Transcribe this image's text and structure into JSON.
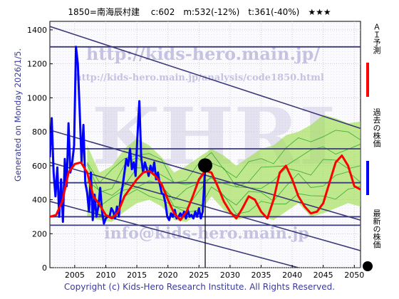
{
  "header": {
    "title": "1850=南海辰村建　 c:602　m:532(-12%)　t:361(-40%)　★★★"
  },
  "side_note": "Generated on Monday 2026/1/5.",
  "footer": {
    "copyright": "Copyright (c) Kids-Hero Research Institute. All Rights Reserved."
  },
  "watermarks": {
    "url1": "http://kids-hero.main.jp/",
    "url2": "http://kids-hero.main.jp/analysis/code1850.html",
    "logo": "KHRI",
    "email": "info@kids-hero.main.jp"
  },
  "legend": {
    "ai": {
      "label": "ＡＩ予測",
      "color": "#ff0000"
    },
    "past": {
      "label": "過去の株価",
      "color": "#0000ff"
    },
    "latest": {
      "label": "最新の株価",
      "color": "#000000"
    }
  },
  "chart_data": {
    "type": "line",
    "xlim": [
      2001,
      2051
    ],
    "ylim": [
      0,
      1450
    ],
    "x_ticks": [
      2005,
      2010,
      2015,
      2020,
      2025,
      2030,
      2035,
      2040,
      2045,
      2050
    ],
    "y_ticks": [
      0,
      200,
      400,
      600,
      800,
      1000,
      1200,
      1400
    ],
    "grid": true,
    "hlines": [
      1300,
      700,
      500,
      300,
      250
    ],
    "hline_color": "#3a3a7a",
    "trend_lines": [
      {
        "points": [
          [
            2001,
            1420
          ],
          [
            2051,
            820
          ]
        ]
      },
      {
        "points": [
          [
            2001,
            810
          ],
          [
            2051,
            280
          ]
        ]
      },
      {
        "points": [
          [
            2001,
            620
          ],
          [
            2051,
            100
          ]
        ]
      },
      {
        "points": [
          [
            2001,
            390
          ],
          [
            2041,
            0
          ]
        ]
      }
    ],
    "latest_price": {
      "x": 2026.0,
      "y": 602,
      "color": "#000000"
    },
    "series": [
      {
        "name": "過去の株価",
        "color": "#0000ff",
        "x": [
          2001.0,
          2001.3,
          2001.6,
          2001.9,
          2002.2,
          2002.5,
          2002.8,
          2003.1,
          2003.4,
          2003.7,
          2004.0,
          2004.3,
          2004.6,
          2004.9,
          2005.2,
          2005.5,
          2005.8,
          2006.1,
          2006.4,
          2006.7,
          2007.0,
          2007.3,
          2007.6,
          2007.9,
          2008.2,
          2008.5,
          2008.8,
          2009.1,
          2009.4,
          2009.7,
          2010.0,
          2010.3,
          2010.6,
          2010.9,
          2011.2,
          2011.5,
          2011.8,
          2012.1,
          2012.4,
          2012.7,
          2013.0,
          2013.3,
          2013.6,
          2013.9,
          2014.2,
          2014.5,
          2014.8,
          2015.1,
          2015.4,
          2015.7,
          2016.0,
          2016.3,
          2016.6,
          2016.9,
          2017.2,
          2017.5,
          2017.8,
          2018.1,
          2018.4,
          2018.7,
          2019.0,
          2019.3,
          2019.6,
          2019.9,
          2020.2,
          2020.5,
          2020.8,
          2021.1,
          2021.4,
          2021.7,
          2022.0,
          2022.3,
          2022.6,
          2022.9,
          2023.2,
          2023.5,
          2023.8,
          2024.1,
          2024.4,
          2024.7,
          2025.0,
          2025.3,
          2025.6,
          2026.0
        ],
        "y": [
          650,
          880,
          560,
          420,
          590,
          300,
          520,
          270,
          640,
          480,
          850,
          560,
          620,
          720,
          1300,
          1200,
          920,
          620,
          840,
          500,
          440,
          330,
          560,
          280,
          430,
          300,
          360,
          470,
          330,
          260,
          290,
          300,
          300,
          350,
          330,
          290,
          360,
          300,
          420,
          480,
          560,
          640,
          600,
          700,
          580,
          620,
          540,
          780,
          980,
          650,
          560,
          620,
          580,
          540,
          600,
          560,
          620,
          520,
          560,
          490,
          440,
          430,
          380,
          300,
          280,
          320,
          300,
          340,
          290,
          300,
          320,
          300,
          330,
          290,
          340,
          300,
          310,
          290,
          330,
          300,
          350,
          290,
          330,
          602
        ]
      },
      {
        "name": "ＡＩ予測",
        "color": "#ff0000",
        "x": [
          2001,
          2002,
          2003,
          2004,
          2005,
          2006,
          2007,
          2008,
          2009,
          2010,
          2011,
          2012,
          2013,
          2014,
          2015,
          2016,
          2017,
          2018,
          2019,
          2020,
          2021,
          2022,
          2023,
          2024,
          2025,
          2026,
          2027,
          2028,
          2029,
          2030,
          2031,
          2032,
          2033,
          2034,
          2035,
          2036,
          2037,
          2038,
          2039,
          2040,
          2041,
          2042,
          2043,
          2044,
          2045,
          2046,
          2047,
          2048,
          2049,
          2050,
          2051
        ],
        "y": [
          300,
          310,
          390,
          560,
          610,
          620,
          560,
          420,
          370,
          310,
          290,
          330,
          420,
          470,
          520,
          560,
          570,
          540,
          490,
          400,
          320,
          280,
          330,
          420,
          520,
          570,
          560,
          480,
          390,
          330,
          290,
          350,
          420,
          400,
          330,
          290,
          400,
          560,
          600,
          520,
          420,
          360,
          320,
          330,
          380,
          500,
          620,
          660,
          600,
          480,
          460
        ]
      }
    ],
    "forecast_band": {
      "x": [
        2007,
        2009,
        2011,
        2013,
        2015,
        2017,
        2019,
        2021,
        2023,
        2025,
        2027,
        2029,
        2031,
        2033,
        2035,
        2037,
        2039,
        2041,
        2043,
        2045,
        2047,
        2049,
        2051
      ],
      "upper": [
        720,
        560,
        600,
        700,
        760,
        720,
        650,
        560,
        600,
        650,
        700,
        660,
        600,
        650,
        700,
        720,
        780,
        800,
        840,
        900,
        880,
        850,
        860
      ],
      "lower": [
        300,
        280,
        270,
        330,
        380,
        400,
        360,
        280,
        270,
        320,
        420,
        340,
        280,
        300,
        300,
        280,
        330,
        380,
        300,
        320,
        350,
        380,
        360
      ],
      "color": "#99dd44"
    }
  }
}
